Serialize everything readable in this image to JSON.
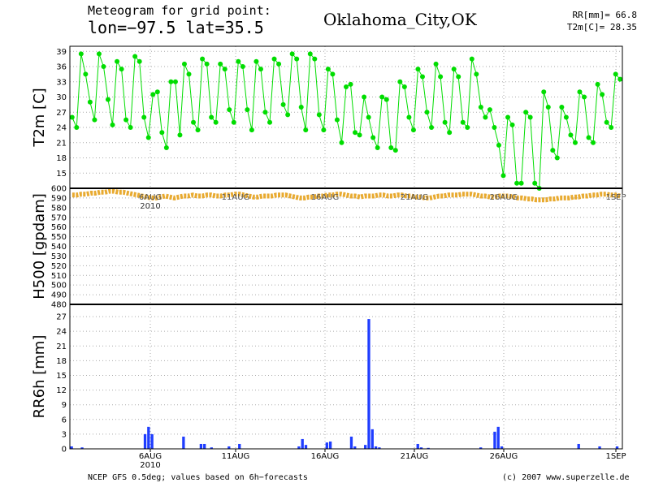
{
  "header": {
    "title_line1": "Meteogram for grid point:",
    "title_line2": "lon=−97.5 lat=35.5",
    "location": "Oklahoma_City,OK",
    "rr_total": "RR[mm]= 66.8",
    "t2m_current": "T2m[C]= 28.35"
  },
  "footer": {
    "left": "NCEP GFS 0.5deg; values based on 6h−forecasts",
    "right": "(c) 2007 www.superzelle.de"
  },
  "colors": {
    "t2m": "#00dd00",
    "h500": "#e8aa30",
    "rr6h": "#1f3dff",
    "grid": "#aaaaaa"
  },
  "chart_data": [
    {
      "type": "line",
      "ylabel": "T2m [C]",
      "yticks": [
        15,
        18,
        21,
        24,
        27,
        30,
        33,
        36,
        39
      ],
      "ylim": [
        12,
        40
      ],
      "x_start": "2010-08-02 06:00",
      "x_step": "6h",
      "series": [
        {
          "values": [
            26,
            24,
            38.5,
            34.5,
            29,
            25.5,
            38.5,
            36,
            29.5,
            24.5,
            37,
            35.5,
            25.5,
            24,
            38,
            37,
            26,
            22,
            30.5,
            31,
            23,
            20,
            33,
            33,
            22.5,
            36.5,
            34.5,
            25,
            23.5,
            37.5,
            36.5,
            26,
            25,
            36.5,
            35.5,
            27.5,
            25,
            37,
            36,
            27.5,
            23.5,
            37,
            35.5,
            27,
            25,
            37.5,
            36.5,
            28.5,
            26.5,
            38.5,
            37.5,
            28,
            23.5,
            38.5,
            37.5,
            26.5,
            23.5,
            35.5,
            34.5,
            25.5,
            21,
            32,
            32.5,
            23,
            22.5,
            30,
            26,
            22,
            20,
            30,
            29.5,
            20,
            19.5,
            33,
            32,
            26,
            23.5,
            35.5,
            34,
            27,
            24,
            36.5,
            34,
            25,
            23,
            35.5,
            34,
            25,
            24,
            37.5,
            34.5,
            28,
            26,
            27.5,
            24,
            20.5,
            14.5,
            26,
            24.5,
            13,
            13,
            27,
            26,
            13,
            12,
            31,
            28,
            19.5,
            18,
            28,
            26,
            22.5,
            21,
            31,
            30,
            22,
            21,
            32.5,
            30.5,
            25,
            24,
            34.5,
            33.5
          ]
        }
      ],
      "xlim": [
        0,
        118
      ]
    },
    {
      "type": "line",
      "ylabel": "H500 [gpdam]",
      "yticks": [
        480,
        490,
        500,
        510,
        520,
        530,
        540,
        550,
        560,
        570,
        580,
        590,
        600
      ],
      "ylim": [
        480,
        600
      ],
      "series": [
        {
          "values": [
            593,
            593,
            594,
            594,
            595,
            595,
            596,
            596,
            597,
            597,
            596,
            596,
            595,
            594,
            593,
            592,
            591,
            590,
            590,
            591,
            592,
            591,
            590,
            591,
            592,
            592,
            593,
            592,
            592,
            593,
            593,
            592,
            592,
            593,
            593,
            594,
            594,
            593,
            592,
            591,
            591,
            592,
            592,
            592,
            593,
            593,
            593,
            592,
            591,
            590,
            590,
            591,
            591,
            592,
            592,
            593,
            593,
            594,
            594,
            593,
            592,
            592,
            591,
            592,
            592,
            592,
            593,
            593,
            592,
            592,
            593,
            593,
            592,
            592,
            591,
            591,
            590,
            590,
            591,
            592,
            592,
            593,
            593,
            593,
            594,
            594,
            594,
            593,
            592,
            592,
            591,
            591,
            592,
            592,
            592,
            591,
            590,
            590,
            589,
            589,
            588,
            588,
            588,
            589,
            589,
            590,
            590,
            590,
            591,
            591,
            592,
            592,
            593,
            593,
            594,
            594,
            593,
            593,
            592
          ]
        }
      ]
    },
    {
      "type": "bar",
      "ylabel": "RR6h [mm]",
      "yticks": [
        0,
        3,
        6,
        9,
        12,
        15,
        18,
        21,
        24,
        27
      ],
      "ylim": [
        0,
        29.5
      ],
      "series": [
        {
          "values": [
            0.5,
            0,
            0,
            0.3,
            0,
            0,
            0,
            0,
            0,
            0,
            0,
            0,
            0,
            0,
            0,
            0,
            0,
            0,
            0,
            0,
            0,
            3,
            4.5,
            3,
            0,
            0,
            0,
            0,
            0,
            0,
            0,
            0,
            2.5,
            0,
            0,
            0,
            0,
            1,
            1,
            0,
            0.3,
            0,
            0,
            0,
            0,
            0.5,
            0,
            0,
            1,
            0,
            0,
            0,
            0,
            0,
            0,
            0,
            0,
            0,
            0,
            0,
            0,
            0,
            0,
            0,
            0,
            0.5,
            2,
            0.8,
            0,
            0,
            0,
            0,
            0,
            1.3,
            1.5,
            0,
            0,
            0,
            0,
            0,
            2.5,
            0.5,
            0,
            0,
            0.8,
            26.5,
            4,
            0.5,
            0.3,
            0,
            0,
            0,
            0,
            0,
            0,
            0,
            0,
            0,
            0,
            1,
            0.3,
            0,
            0.2,
            0,
            0,
            0,
            0,
            0,
            0,
            0,
            0,
            0,
            0,
            0,
            0,
            0,
            0,
            0.3,
            0,
            0,
            0,
            3.5,
            4.5,
            0.5,
            0,
            0,
            0,
            0,
            0,
            0,
            0,
            0,
            0,
            0,
            0,
            0,
            0,
            0,
            0,
            0,
            0,
            0,
            0,
            0,
            0,
            1,
            0,
            0,
            0,
            0,
            0,
            0.5,
            0,
            0,
            0,
            0,
            0.5,
            0
          ]
        }
      ]
    }
  ],
  "x_axis": {
    "ticks": [
      "6AUG",
      "11AUG",
      "16AUG",
      "21AUG",
      "26AUG",
      "1SEP"
    ],
    "year_label": "2010"
  }
}
